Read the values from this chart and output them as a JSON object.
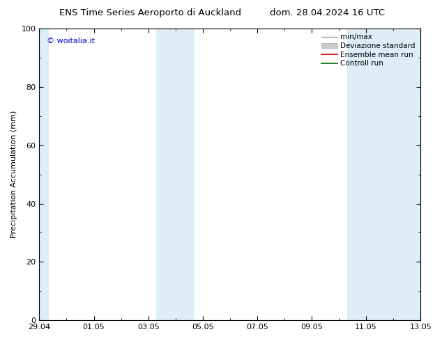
{
  "title_left": "ENS Time Series Aeroporto di Auckland",
  "title_right": "dom. 28.04.2024 16 UTC",
  "ylabel": "Precipitation Accumulation (mm)",
  "ylim": [
    0,
    100
  ],
  "yticks": [
    0,
    20,
    40,
    60,
    80,
    100
  ],
  "xtick_labels": [
    "29.04",
    "01.05",
    "03.05",
    "05.05",
    "07.05",
    "09.05",
    "11.05",
    "13.05"
  ],
  "copyright_text": "© woitalia.it",
  "copyright_color": "#0000cc",
  "bg_color": "#ffffff",
  "shaded_regions": [
    {
      "xstart": -0.05,
      "xend": 0.35
    },
    {
      "xstart": 4.3,
      "xend": 5.7
    },
    {
      "xstart": 11.3,
      "xend": 14.1
    }
  ],
  "shaded_color": "#ddeef8",
  "legend_items": [
    {
      "label": "min/max"
    },
    {
      "label": "Deviazione standard"
    },
    {
      "label": "Ensemble mean run"
    },
    {
      "label": "Controll run"
    }
  ],
  "font_size_title": 9.5,
  "font_size_legend": 7.5,
  "font_size_ticks": 8,
  "font_size_ylabel": 8,
  "font_size_copyright": 8,
  "x_range": [
    0,
    14
  ]
}
